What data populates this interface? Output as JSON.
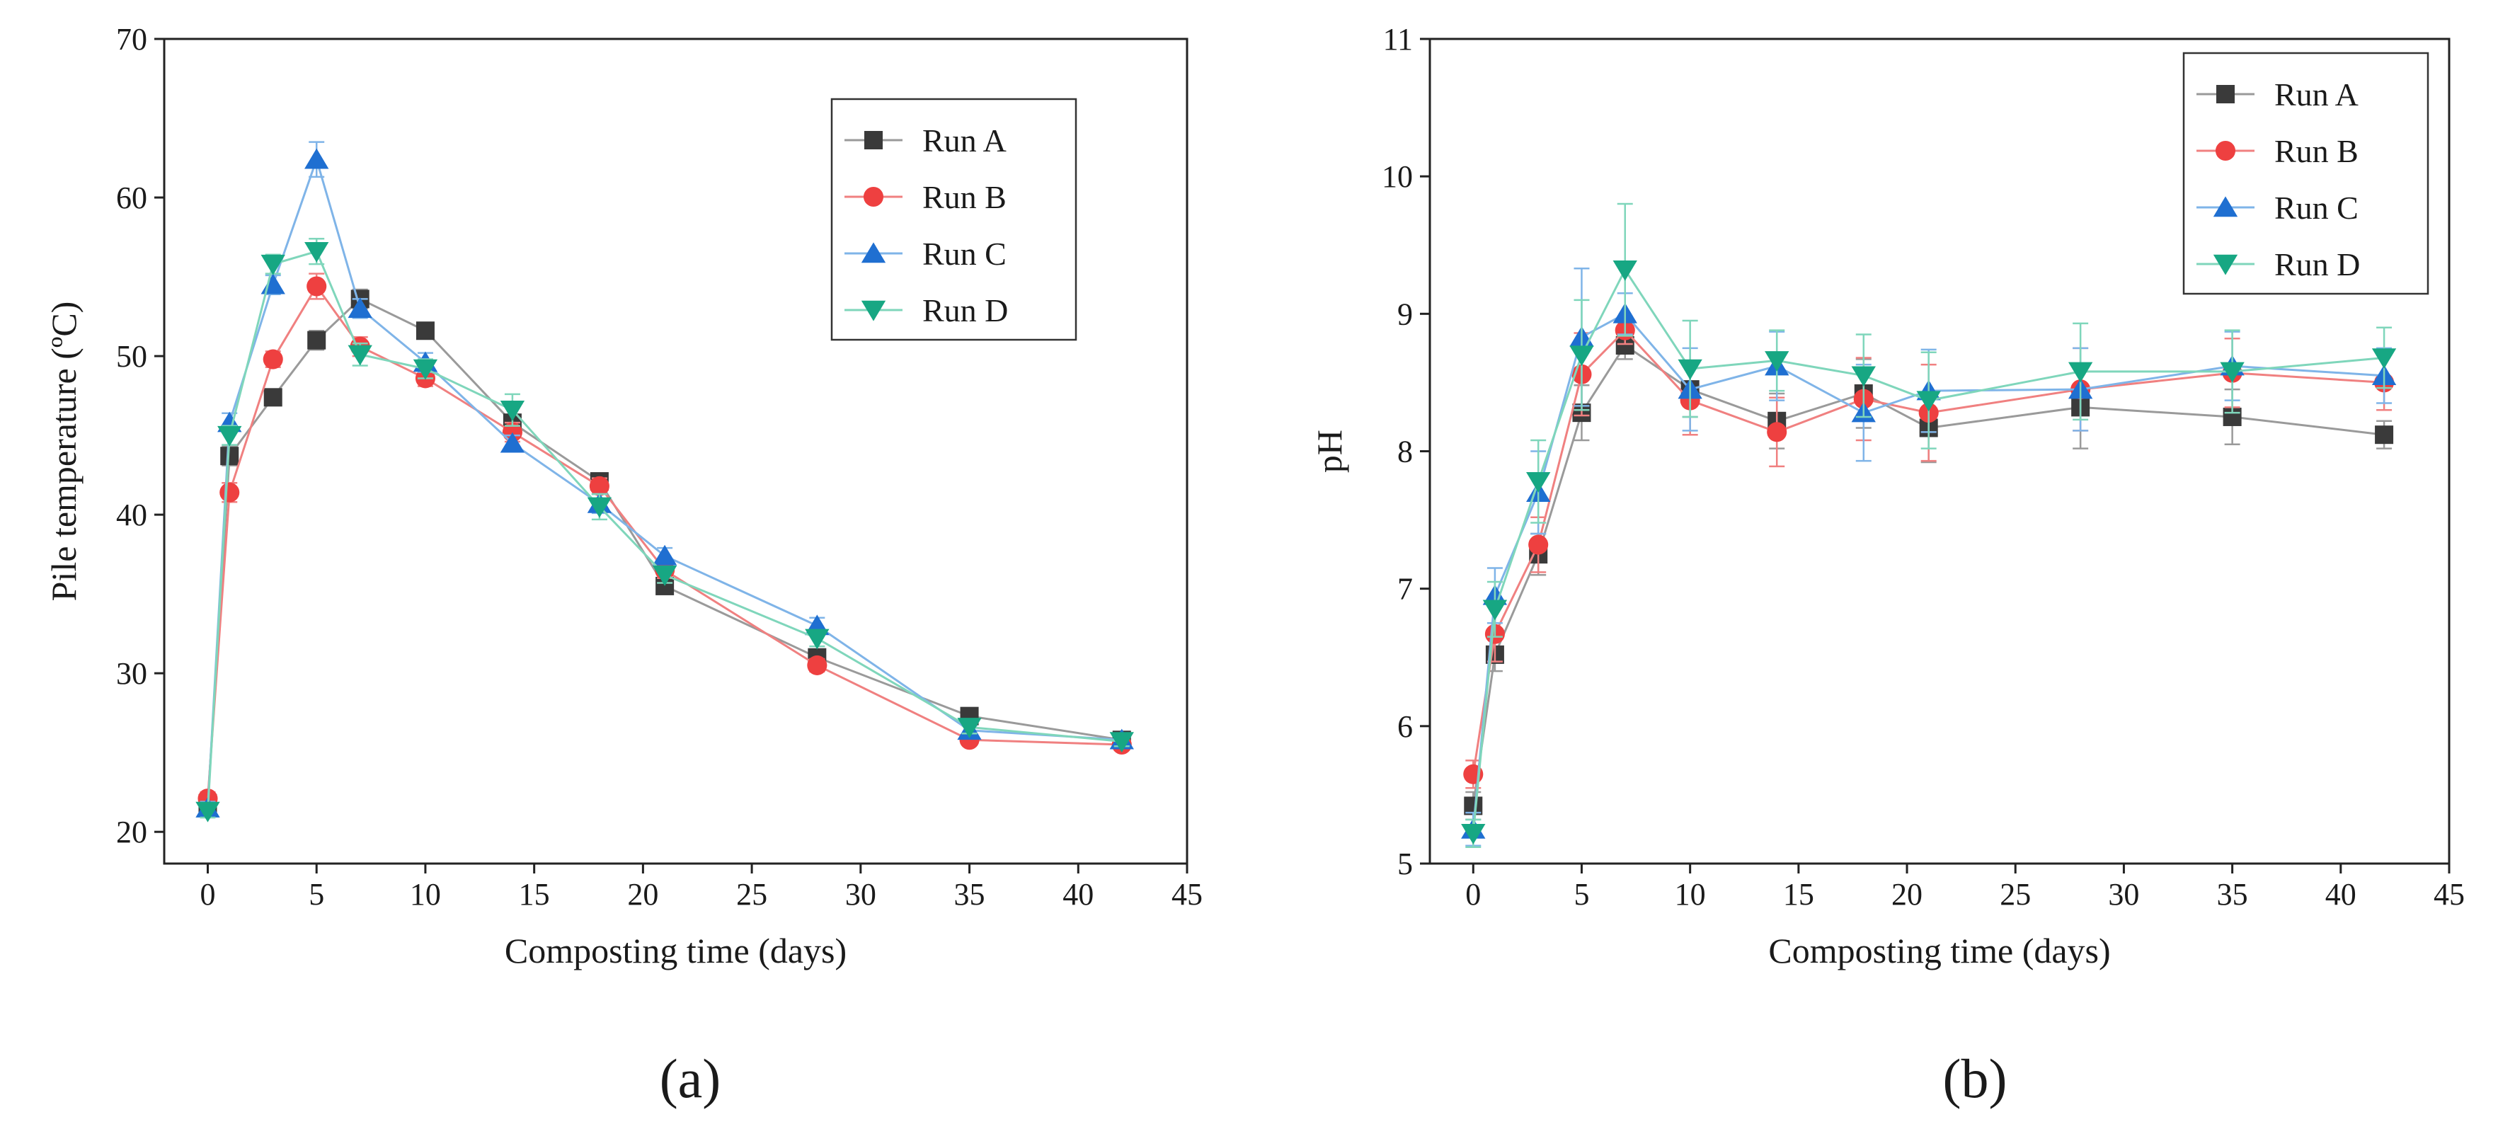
{
  "figure": {
    "panel_labels": [
      "(a)",
      "(b)"
    ]
  },
  "chart_data": [
    {
      "type": "line",
      "panel": "(a)",
      "title": "",
      "xlabel": "Composting time (days)",
      "ylabel": "Pile temperature (ºC)",
      "xlim": [
        -2,
        45
      ],
      "ylim": [
        18,
        70
      ],
      "xticks": [
        0,
        5,
        10,
        15,
        20,
        25,
        30,
        35,
        40,
        45
      ],
      "yticks": [
        20,
        30,
        40,
        50,
        60,
        70
      ],
      "grid": false,
      "legend_position": "top-right",
      "x": [
        0,
        1,
        3,
        5,
        7,
        10,
        14,
        18,
        21,
        28,
        35,
        42
      ],
      "series": [
        {
          "name": "Run A",
          "marker": "square",
          "color": "#3a3a3a",
          "line_color": "#9a9a9a",
          "values": [
            21.8,
            43.7,
            47.4,
            51.0,
            53.6,
            51.6,
            45.8,
            42.1,
            35.5,
            31.0,
            27.3,
            25.8
          ],
          "errors": [
            0.4,
            0.6,
            0.5,
            0.6,
            0.6,
            0.5,
            0.5,
            0.5,
            0.4,
            0.4,
            0.4,
            0.3
          ]
        },
        {
          "name": "Run B",
          "marker": "circle",
          "color": "#ee4040",
          "line_color": "#f08080",
          "values": [
            22.1,
            41.4,
            49.8,
            54.4,
            50.6,
            48.6,
            45.2,
            41.8,
            36.5,
            30.5,
            25.8,
            25.5
          ],
          "errors": [
            0.4,
            0.6,
            0.5,
            0.8,
            0.6,
            0.5,
            0.6,
            0.5,
            0.5,
            0.4,
            0.3,
            0.3
          ]
        },
        {
          "name": "Run C",
          "marker": "triangle-up",
          "color": "#1f6fd1",
          "line_color": "#7fb4e8",
          "values": [
            21.5,
            45.8,
            54.5,
            62.4,
            53.0,
            49.6,
            44.5,
            40.7,
            37.4,
            33.0,
            26.4,
            25.8
          ],
          "errors": [
            0.4,
            0.6,
            0.6,
            1.1,
            0.6,
            0.6,
            0.5,
            0.6,
            0.5,
            0.5,
            0.3,
            0.3
          ]
        },
        {
          "name": "Run D",
          "marker": "triangle-down",
          "color": "#17a783",
          "line_color": "#7fd6bb",
          "values": [
            21.3,
            45.0,
            55.8,
            56.6,
            50.1,
            49.2,
            46.6,
            40.5,
            36.2,
            32.2,
            26.6,
            25.7
          ],
          "errors": [
            0.4,
            0.6,
            0.6,
            0.8,
            0.7,
            0.6,
            1.0,
            0.8,
            0.5,
            0.5,
            0.4,
            0.3
          ]
        }
      ]
    },
    {
      "type": "line",
      "panel": "(b)",
      "title": "",
      "xlabel": "Composting time (days)",
      "ylabel": "pH",
      "xlim": [
        -2,
        45
      ],
      "ylim": [
        5,
        11
      ],
      "xticks": [
        0,
        5,
        10,
        15,
        20,
        25,
        30,
        35,
        40,
        45
      ],
      "yticks": [
        5,
        6,
        7,
        8,
        9,
        10,
        11
      ],
      "grid": false,
      "legend_position": "top-right",
      "x": [
        0,
        1,
        3,
        5,
        7,
        10,
        14,
        18,
        21,
        28,
        35,
        42
      ],
      "series": [
        {
          "name": "Run A",
          "marker": "square",
          "color": "#3a3a3a",
          "line_color": "#9a9a9a",
          "values": [
            5.42,
            6.52,
            7.25,
            8.28,
            8.77,
            8.45,
            8.22,
            8.42,
            8.17,
            8.32,
            8.25,
            8.12
          ],
          "errors": [
            0.1,
            0.12,
            0.15,
            0.2,
            0.1,
            0.2,
            0.2,
            0.25,
            0.25,
            0.3,
            0.2,
            0.1
          ]
        },
        {
          "name": "Run B",
          "marker": "circle",
          "color": "#ee4040",
          "line_color": "#f08080",
          "values": [
            5.65,
            6.67,
            7.32,
            8.56,
            8.88,
            8.37,
            8.14,
            8.38,
            8.28,
            8.45,
            8.57,
            8.5
          ],
          "errors": [
            0.1,
            0.2,
            0.2,
            0.3,
            0.1,
            0.25,
            0.25,
            0.3,
            0.35,
            0.3,
            0.25,
            0.2
          ]
        },
        {
          "name": "Run C",
          "marker": "triangle-up",
          "color": "#1f6fd1",
          "line_color": "#7fb4e8",
          "values": [
            5.25,
            6.95,
            7.7,
            8.83,
            9.0,
            8.45,
            8.62,
            8.28,
            8.44,
            8.45,
            8.62,
            8.55
          ],
          "errors": [
            0.12,
            0.2,
            0.3,
            0.5,
            0.15,
            0.3,
            0.25,
            0.35,
            0.3,
            0.3,
            0.25,
            0.2
          ]
        },
        {
          "name": "Run D",
          "marker": "triangle-down",
          "color": "#17a783",
          "line_color": "#7fd6bb",
          "values": [
            5.22,
            6.85,
            7.78,
            8.7,
            9.32,
            8.6,
            8.66,
            8.55,
            8.37,
            8.58,
            8.58,
            8.68
          ],
          "errors": [
            0.1,
            0.2,
            0.3,
            0.4,
            0.48,
            0.35,
            0.22,
            0.3,
            0.35,
            0.35,
            0.3,
            0.22
          ]
        }
      ]
    }
  ]
}
